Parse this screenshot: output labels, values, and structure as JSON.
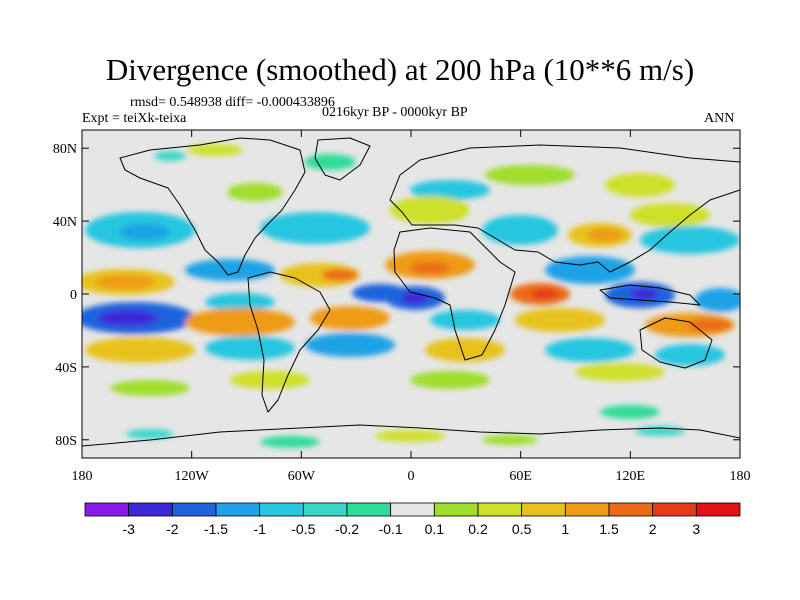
{
  "title": "Divergence (smoothed) at 200 hPa (10**6 m/s)",
  "stats": "rmsd= 0.548938 diff= -0.000433896",
  "experiment": "Expt = teiXk-teixa",
  "period": "0216kyr BP - 0000kyr BP",
  "season": "ANN",
  "lat_ticks": [
    "80N",
    "40N",
    "0",
    "40S",
    "80S"
  ],
  "lon_ticks": [
    "180",
    "120W",
    "60W",
    "0",
    "60E",
    "120E",
    "180"
  ],
  "colorbar": {
    "labels": [
      "-3",
      "-2",
      "-1.5",
      "-1",
      "-0.5",
      "-0.2",
      "-0.1",
      "0.1",
      "0.2",
      "0.5",
      "1",
      "1.5",
      "2",
      "3"
    ],
    "colors": [
      "#8c1aeb",
      "#3c28d8",
      "#1f64de",
      "#1fa2e6",
      "#28c6e0",
      "#3ad7c8",
      "#2fdc9a",
      "#e6e6e6",
      "#9fde2a",
      "#cfe02a",
      "#e8c21c",
      "#ee9b17",
      "#ec6a16",
      "#e6391a",
      "#e01414"
    ]
  }
}
